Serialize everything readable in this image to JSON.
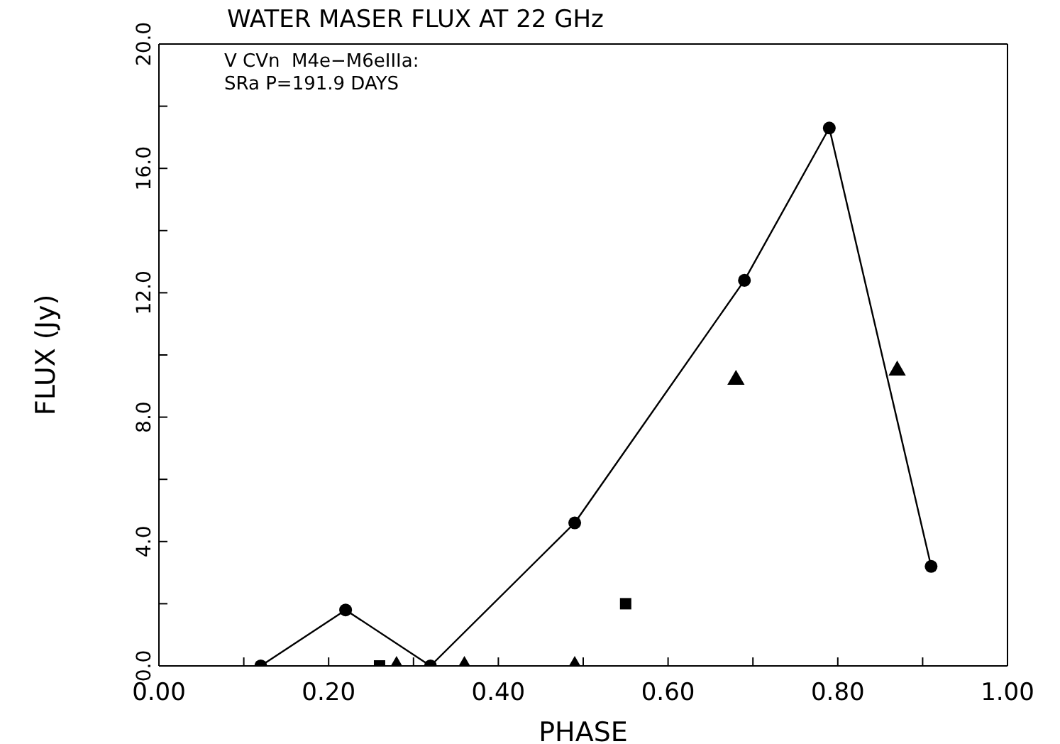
{
  "chart_data": {
    "type": "scatter",
    "title": "WATER MASER FLUX AT 22 GHz",
    "xlabel": "PHASE",
    "ylabel": "FLUX (Jy)",
    "annotations": [
      "V CVn  M4e−M6eIIIa:",
      "SRa P=191.9 DAYS"
    ],
    "xlim": [
      0,
      1
    ],
    "ylim": [
      0,
      20
    ],
    "xticks": [
      {
        "value": 0,
        "label": "0.00"
      },
      {
        "value": 0.1,
        "label": null
      },
      {
        "value": 0.2,
        "label": "0.20"
      },
      {
        "value": 0.3,
        "label": null
      },
      {
        "value": 0.4,
        "label": "0.40"
      },
      {
        "value": 0.5,
        "label": null
      },
      {
        "value": 0.6,
        "label": "0.60"
      },
      {
        "value": 0.7,
        "label": null
      },
      {
        "value": 0.8,
        "label": "0.80"
      },
      {
        "value": 0.9,
        "label": null
      },
      {
        "value": 1,
        "label": "1.00"
      }
    ],
    "yticks": [
      {
        "value": 0,
        "label": "0.0"
      },
      {
        "value": 2,
        "label": null
      },
      {
        "value": 4,
        "label": "4.0"
      },
      {
        "value": 6,
        "label": null
      },
      {
        "value": 8,
        "label": "8.0"
      },
      {
        "value": 10,
        "label": null
      },
      {
        "value": 12,
        "label": "12.0"
      },
      {
        "value": 14,
        "label": null
      },
      {
        "value": 16,
        "label": "16.0"
      },
      {
        "value": 18,
        "label": null
      },
      {
        "value": 20,
        "label": "20.0"
      }
    ],
    "grid": false,
    "series": [
      {
        "type": "line",
        "marker": "circle",
        "color": "#000000",
        "x": [
          0.12,
          0.22,
          0.32,
          0.49,
          0.69,
          0.79,
          0.91
        ],
        "values": [
          0,
          1.8,
          0,
          4.6,
          12.4,
          17.3,
          3.2
        ]
      },
      {
        "type": "scatter",
        "marker": "square",
        "color": "#000000",
        "x": [
          0.26,
          0.55
        ],
        "values": [
          0,
          2.0
        ]
      },
      {
        "type": "scatter",
        "marker": "triangle",
        "color": "#000000",
        "x": [
          0.28,
          0.36,
          0.49,
          0.68,
          0.87
        ],
        "values": [
          0,
          0,
          0,
          9.2,
          9.5
        ]
      }
    ]
  }
}
